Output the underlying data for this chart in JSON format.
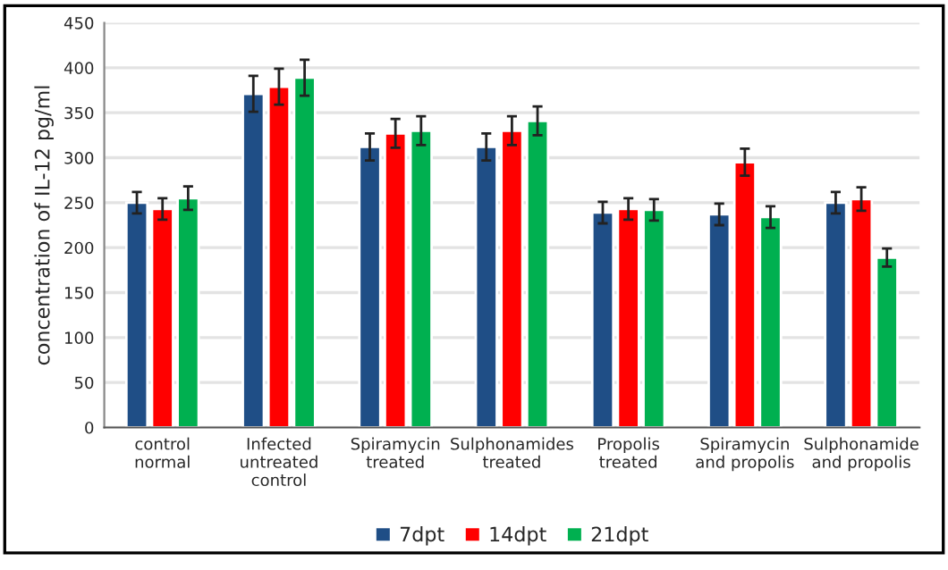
{
  "chart_data": {
    "type": "bar",
    "ylabel": "concentration of IL-12 pg/ml",
    "categories": [
      "control normal",
      "Infected untreated control",
      "Spiramycin treated",
      "Sulphonamides treated",
      "Propolis treated",
      "Spiramycin and propolis",
      "Sulphonamide and propolis"
    ],
    "series": [
      {
        "name": "7dpt",
        "color": "#1f4e86",
        "values": [
          250,
          371,
          312,
          312,
          239,
          237,
          250
        ],
        "errors": [
          12,
          20,
          15,
          15,
          12,
          12,
          12
        ]
      },
      {
        "name": "14dpt",
        "color": "#ff0000",
        "values": [
          243,
          379,
          327,
          330,
          243,
          295,
          254
        ],
        "errors": [
          12,
          20,
          16,
          16,
          12,
          15,
          13
        ]
      },
      {
        "name": "21dpt",
        "color": "#00b050",
        "values": [
          255,
          389,
          330,
          341,
          242,
          234,
          189
        ],
        "errors": [
          13,
          20,
          16,
          16,
          12,
          12,
          10
        ]
      }
    ],
    "ylim": [
      0,
      450
    ],
    "yticks": [
      0,
      50,
      100,
      150,
      200,
      250,
      300,
      350,
      400,
      450
    ],
    "grid": "y",
    "legend": "bottom"
  }
}
